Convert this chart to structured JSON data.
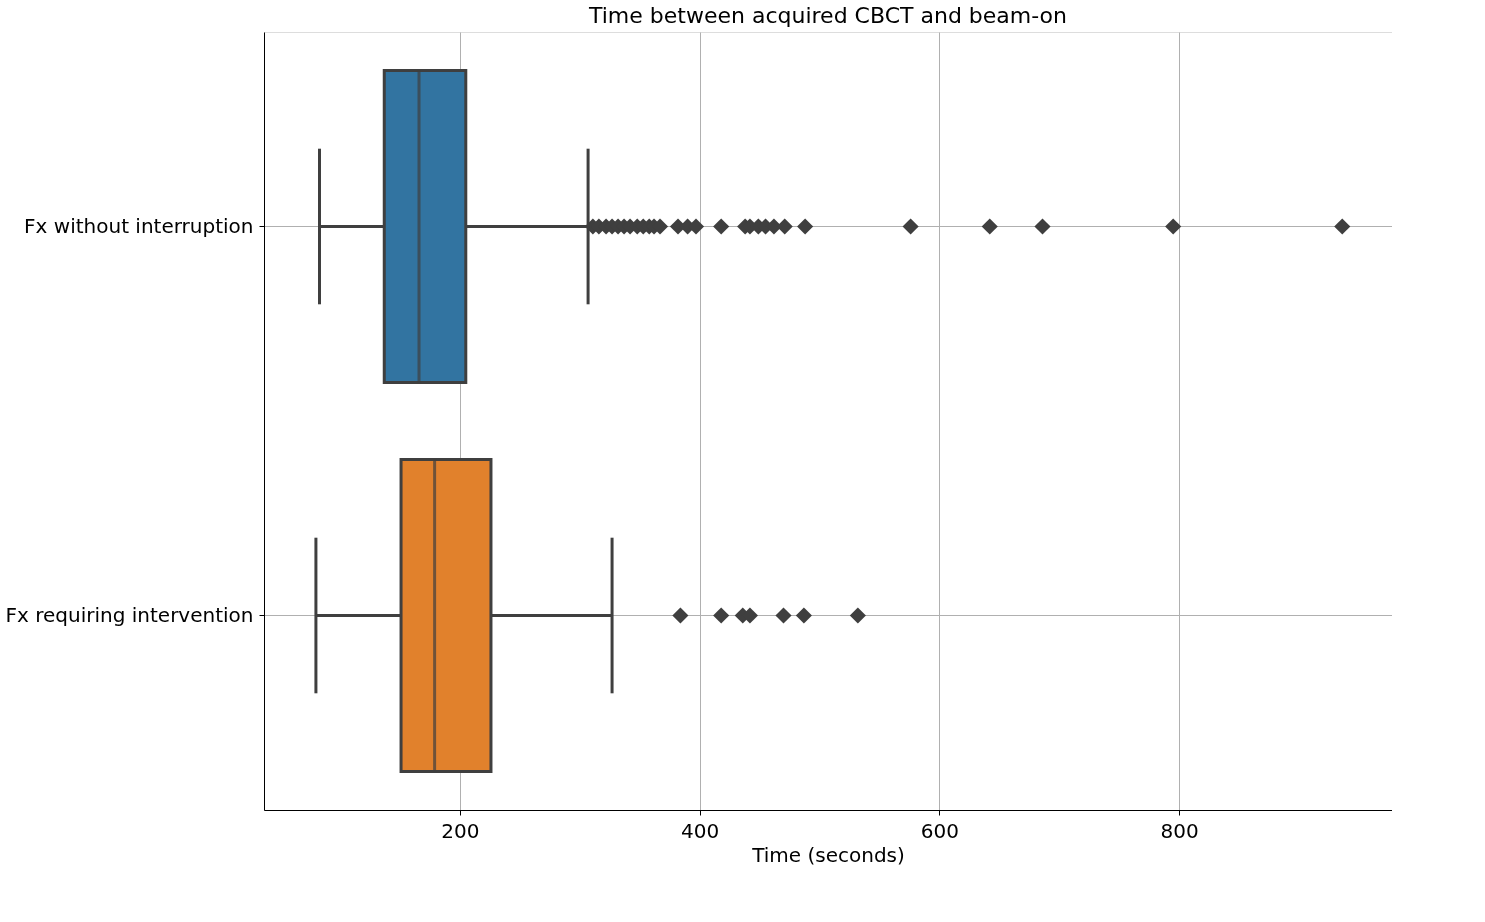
{
  "chart_data": {
    "type": "box",
    "title": "Time between acquired CBCT and beam-on",
    "xlabel": "Time (seconds)",
    "orientation": "horizontal",
    "categories": [
      "Fx without interruption",
      "Fx requiring intervention"
    ],
    "colors": [
      "#3274a1",
      "#e1812c"
    ],
    "boxes": [
      {
        "low": 83,
        "q1": 137,
        "median": 166,
        "q3": 205,
        "high": 307,
        "outliers": [
          311,
          316,
          322,
          327,
          332,
          337,
          342,
          348,
          353,
          358,
          362,
          367,
          382,
          390,
          397,
          418,
          438,
          442,
          449,
          455,
          462,
          471,
          488,
          576,
          642,
          686,
          795,
          936
        ]
      },
      {
        "low": 80,
        "q1": 151,
        "median": 179,
        "q3": 226,
        "high": 327,
        "outliers": [
          384,
          418,
          436,
          442,
          470,
          487,
          532
        ]
      }
    ],
    "xlim": [
      36.7,
      977.5
    ],
    "xticks": [
      200,
      400,
      600,
      800
    ],
    "grid": true,
    "marker": "diamond"
  }
}
